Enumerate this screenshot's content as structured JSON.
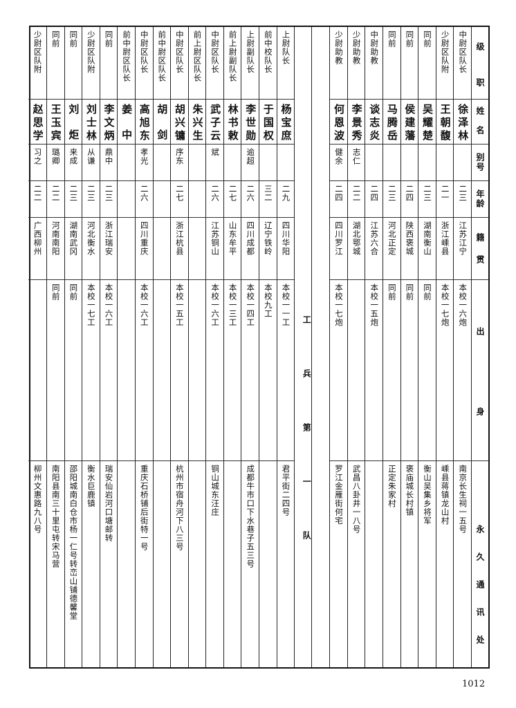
{
  "header": {
    "rank": "级职",
    "name": "姓名",
    "alias": "别号",
    "age": "年龄",
    "native_place": "籍贯",
    "background": "出身",
    "address": "永久通讯处"
  },
  "section_label": "工兵第一队",
  "group_right": [
    {
      "rank": "中尉区队长",
      "name": "徐泽林",
      "alias": "",
      "age": "二三",
      "native_place": "江苏江宁",
      "background": "本校一六炮",
      "address": "南京长生祠一五号"
    },
    {
      "rank": "少尉区队附",
      "name": "王朝馥",
      "alias": "",
      "age": "二一",
      "native_place": "浙江嵊县",
      "background": "本校一七炮",
      "address": "嵊县蒋镇龙山村"
    },
    {
      "rank": "同前",
      "name": "吴耀楚",
      "alias": "",
      "age": "二三",
      "native_place": "湖南衡山",
      "background": "同前",
      "address": "衡山吴集乡将军"
    },
    {
      "rank": "同前",
      "name": "侯建藩",
      "alias": "",
      "age": "二四",
      "native_place": "陕西褒城",
      "background": "同前",
      "address": "褒庙城长村镇"
    },
    {
      "rank": "同前",
      "name": "马腾岳",
      "alias": "",
      "age": "二三",
      "native_place": "河北正定",
      "background": "同前",
      "address": "正定朱家村"
    },
    {
      "rank": "中尉助教",
      "name": "谈志炎",
      "alias": "",
      "age": "二四",
      "native_place": "江苏六合",
      "background": "本校一五炮",
      "address": ""
    },
    {
      "rank": "少尉助教",
      "name": "李景秀",
      "alias": "志仁",
      "age": "二二",
      "native_place": "湖北鄂城",
      "background": "",
      "address": "武昌八卦井一八号"
    },
    {
      "rank": "少尉助教",
      "name": "何恩波",
      "alias": "健余",
      "age": "二四",
      "native_place": "四川罗江",
      "background": "本校一七炮",
      "address": "罗江金雁街何宅"
    }
  ],
  "group_left": [
    {
      "rank": "上尉队长",
      "name": "杨宝庶",
      "alias": "",
      "age": "二九",
      "native_place": "四川华阳",
      "background": "本校一一工",
      "address": "君平街二四号"
    },
    {
      "rank": "前中校队长",
      "name": "于国权",
      "alias": "",
      "age": "三二",
      "native_place": "辽宁铁岭",
      "background": "本校九工",
      "address": ""
    },
    {
      "rank": "上尉副队长",
      "name": "李世勋",
      "alias": "逾超",
      "age": "二六",
      "native_place": "四川成都",
      "background": "本校一四工",
      "address": "成都牛市口下水巷子五三号"
    },
    {
      "rank": "前上尉副队长",
      "name": "林书敕",
      "alias": "",
      "age": "二七",
      "native_place": "山东牟平",
      "background": "本校一三工",
      "address": ""
    },
    {
      "rank": "中尉区队长",
      "name": "武子云",
      "alias": "斌",
      "age": "二六",
      "native_place": "江苏铜山",
      "background": "本校一六工",
      "address": "铜山城东汪庄"
    },
    {
      "rank": "前上尉区队长",
      "name": "朱兴生",
      "alias": "",
      "age": "",
      "native_place": "",
      "background": "",
      "address": ""
    },
    {
      "rank": "中尉区队长",
      "name": "胡兴镛",
      "alias": "序东",
      "age": "二七",
      "native_place": "浙江杭县",
      "background": "本校一五工",
      "address": "杭州市宿舟河下八三号"
    },
    {
      "rank": "前中尉区队长",
      "name": "胡剑",
      "alias": "",
      "age": "",
      "native_place": "",
      "background": "",
      "address": ""
    },
    {
      "rank": "中尉区队长",
      "name": "高旭东",
      "alias": "孝光",
      "age": "二六",
      "native_place": "四川重庆",
      "background": "本校一六工",
      "address": "重庆石桥铺后街特一号"
    },
    {
      "rank": "前中尉区队长",
      "name": "姜中",
      "alias": "",
      "age": "",
      "native_place": "",
      "background": "",
      "address": ""
    },
    {
      "rank": "同前",
      "name": "李文炳",
      "alias": "鼎中",
      "age": "二三",
      "native_place": "浙江瑞安",
      "background": "本校一六工",
      "address": "瑞安仙岩河口塘邮转"
    },
    {
      "rank": "少尉区队附",
      "name": "刘士林",
      "alias": "从谦",
      "age": "二三",
      "native_place": "河北衡水",
      "background": "本校一七工",
      "address": "衡水巨鹿镇"
    },
    {
      "rank": "同前",
      "name": "刘炬",
      "alias": "来成",
      "age": "二三",
      "native_place": "湖南武冈",
      "background": "同前",
      "address": "邵阳城南白仓市杨一仁号转峦山铺德馨堂"
    },
    {
      "rank": "同前",
      "name": "王玉宾",
      "alias": "璐卿",
      "age": "二二",
      "native_place": "河南南阳",
      "background": "同前",
      "address": "南阳县南三十里屯转宋马营"
    },
    {
      "rank": "少尉区队附",
      "name": "赵思学",
      "alias": "习之",
      "age": "二二",
      "native_place": "广西柳州",
      "background": "",
      "address": "柳州文惠路九八号"
    }
  ],
  "page_number": "1012"
}
